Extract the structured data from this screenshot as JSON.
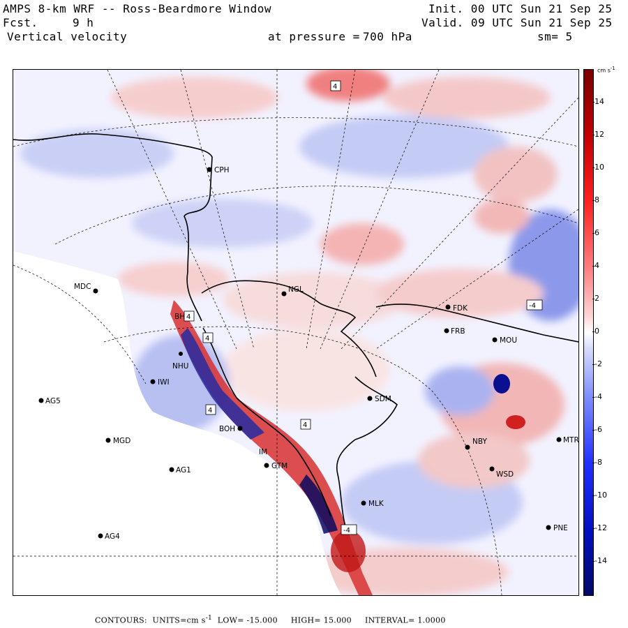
{
  "header": {
    "title": "AMPS 8-km WRF -- Ross-Beardmore Window",
    "fcst_label": "Fcst.",
    "fcst_value": "9 h",
    "field": "Vertical velocity",
    "pressure_label": "at pressure =",
    "pressure_value": "700 hPa",
    "init": "Init. 00 UTC Sun 21 Sep 25",
    "valid": "Valid. 09 UTC Sun 21 Sep 25",
    "smoothing": "sm= 5"
  },
  "colorbar": {
    "units_base": "cm s",
    "units_exp": "-1",
    "ticks": [
      "14",
      "12",
      "10",
      "8",
      "6",
      "4",
      "2",
      "0",
      "-2",
      "-4",
      "-6",
      "-8",
      "-10",
      "-12",
      "-14"
    ],
    "high_color": "#7a0000",
    "low_color": "#000a66"
  },
  "stations": [
    "CPH",
    "MDC",
    "NGL",
    "FDK",
    "FRB",
    "MOU",
    "IWI",
    "AG5",
    "SDM",
    "MGD",
    "BOH",
    "NBY",
    "MTR",
    "GTM",
    "AG1",
    "WSD",
    "MLK",
    "PNE",
    "AG4",
    "IM",
    "NHU",
    "BH"
  ],
  "contour_boxes": [
    "4",
    "4",
    "4",
    "4",
    "4",
    "-4",
    "-4"
  ],
  "footer": {
    "contours": "CONTOURS:",
    "units_label": "UNITS=cm s",
    "units_exp": "-1",
    "low": "LOW= -15.000",
    "high": "HIGH= 15.000",
    "interval": "INTERVAL= 1.0000"
  }
}
